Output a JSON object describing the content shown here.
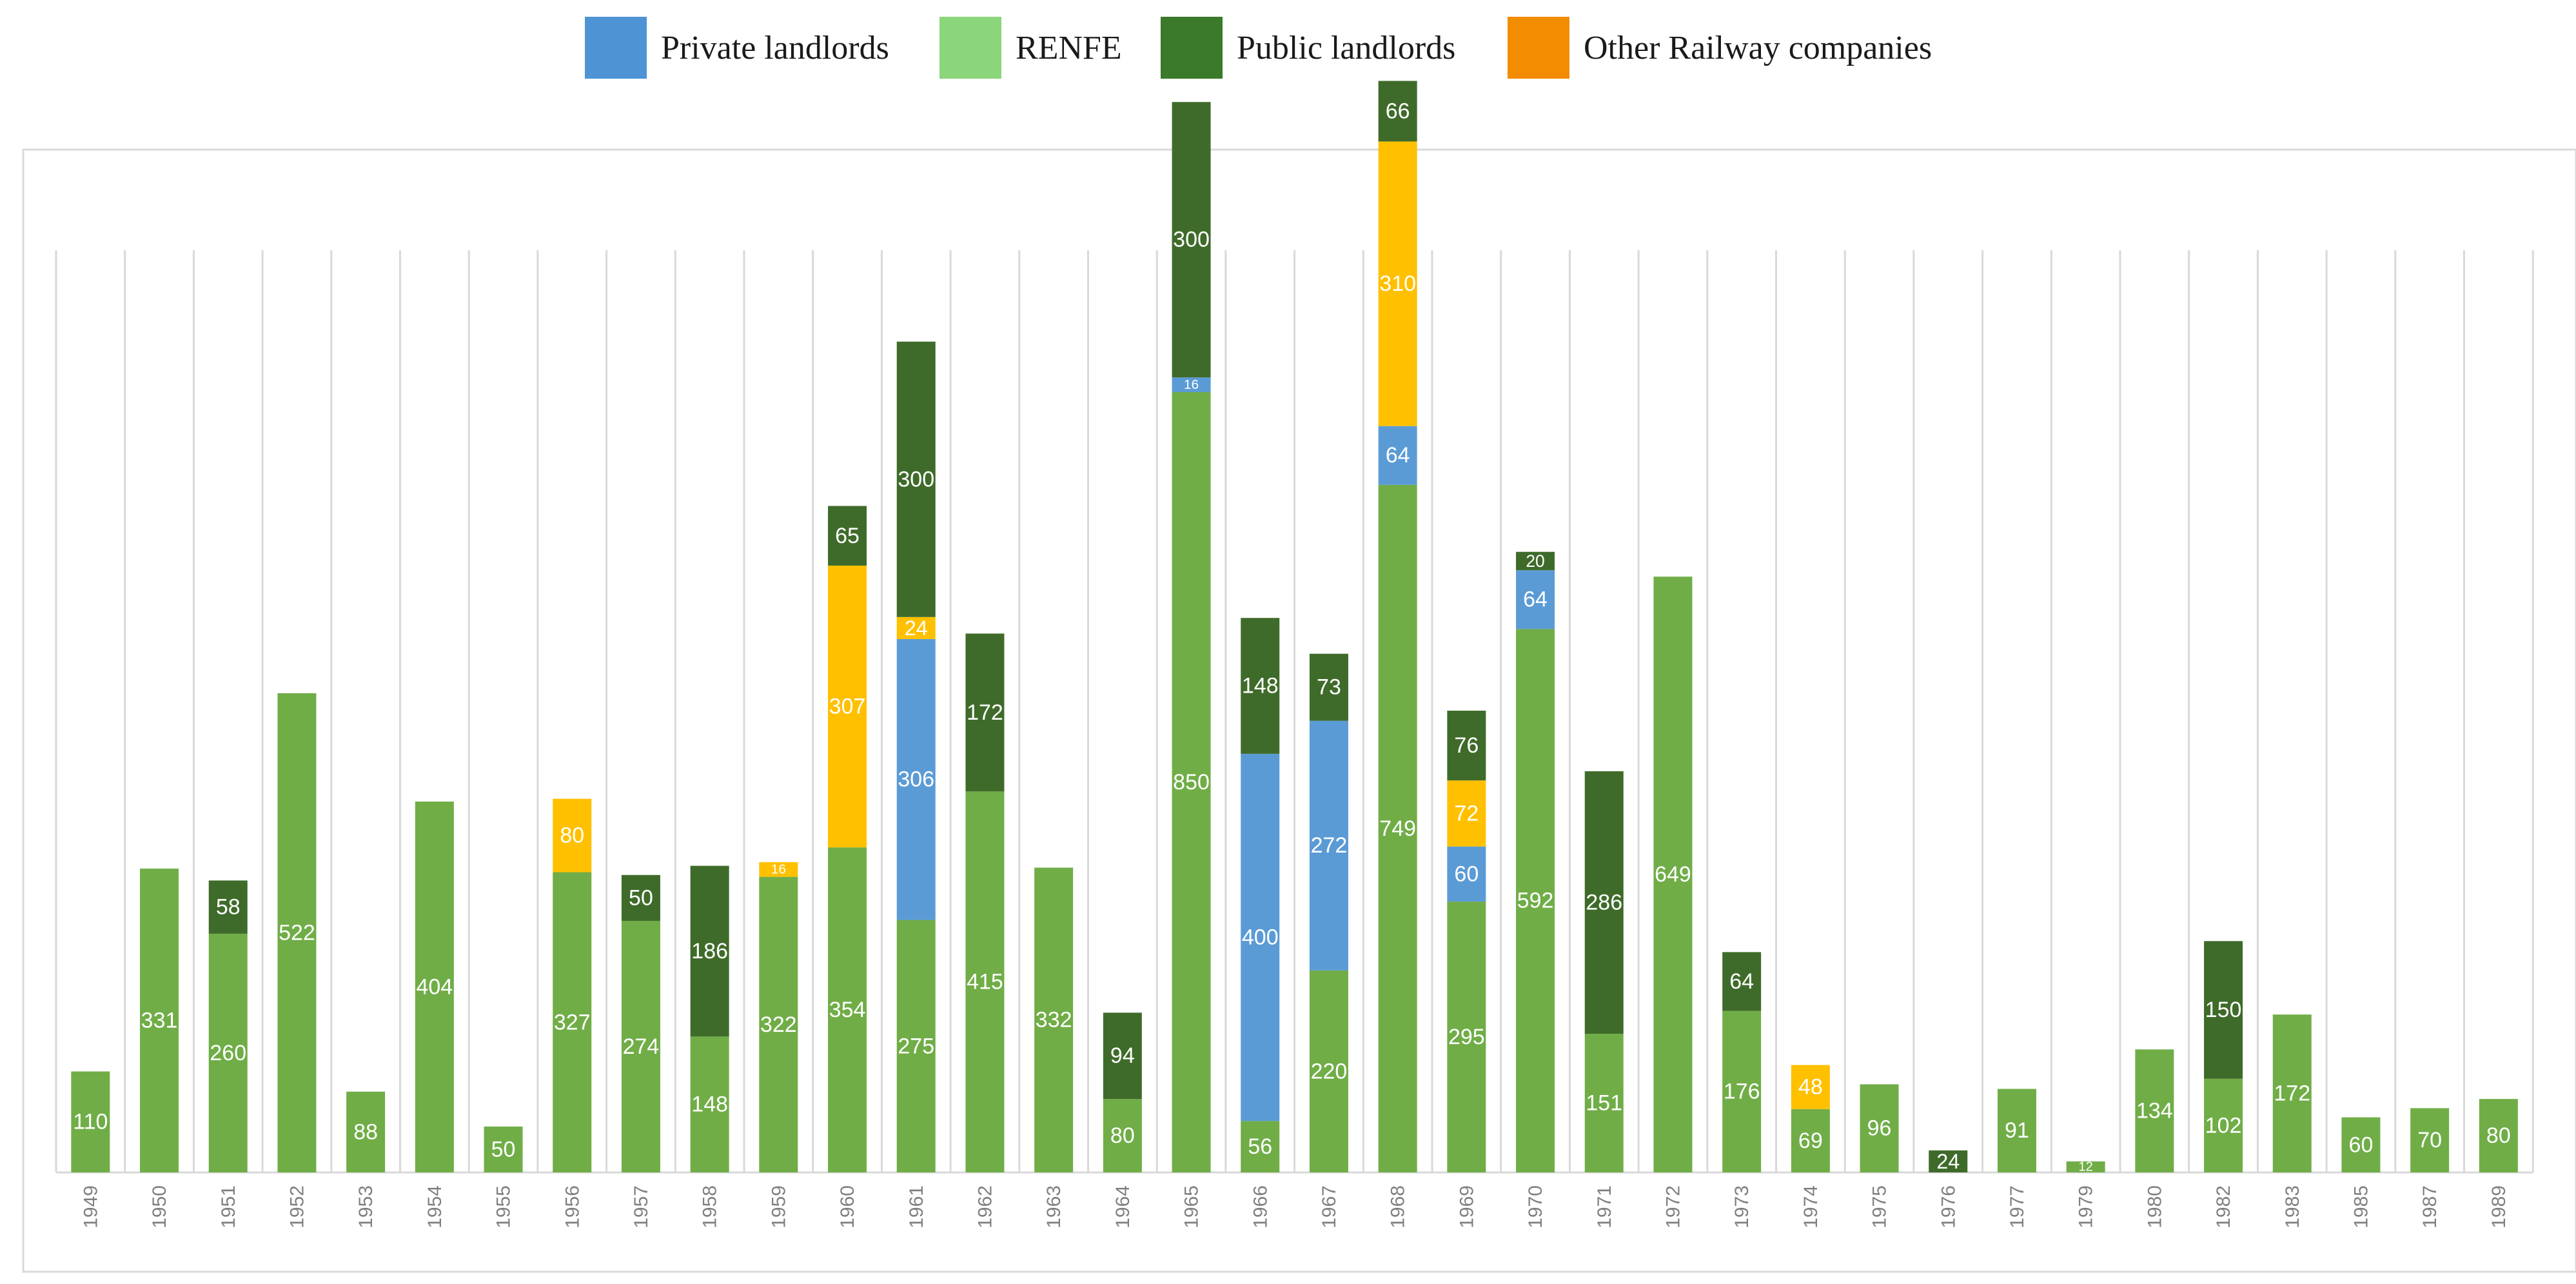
{
  "colors": {
    "renfe": "#70ad47",
    "private": "#5b9bd5",
    "other_railway": "#ffc000",
    "public": "#3f6b2a",
    "legend_private": "#4e94d4",
    "legend_renfe": "#8bd67a",
    "legend_public": "#3a7a2a",
    "legend_other": "#f28c00",
    "grid": "#d9d9d9",
    "frame": "#d9d9d9",
    "axis_text": "#7f7f7f",
    "label_text": "#ffffff"
  },
  "chart_data": {
    "type": "bar",
    "stacked": true,
    "title": "",
    "xlabel": "",
    "ylabel": "",
    "ylim": [
      0,
      1350
    ],
    "grid": "vertical",
    "legend_position": "top",
    "legend": [
      {
        "key": "private",
        "label": "Private landlords"
      },
      {
        "key": "renfe",
        "label": "RENFE"
      },
      {
        "key": "public",
        "label": "Public landlords"
      },
      {
        "key": "other_railway",
        "label": "Other Railway companies"
      }
    ],
    "categories": [
      "1949",
      "1950",
      "1951",
      "1952",
      "1953",
      "1954",
      "1955",
      "1956",
      "1957",
      "1958",
      "1959",
      "1960",
      "1961",
      "1962",
      "1963",
      "1964",
      "1965",
      "1966",
      "1967",
      "1968",
      "1969",
      "1970",
      "1971",
      "1972",
      "1973",
      "1974",
      "1975",
      "1976",
      "1977",
      "1979",
      "1980",
      "1982",
      "1983",
      "1985",
      "1987",
      "1989"
    ],
    "series": [
      {
        "key": "renfe",
        "name": "RENFE",
        "values": [
          110,
          331,
          260,
          522,
          88,
          404,
          50,
          327,
          274,
          148,
          322,
          354,
          275,
          415,
          332,
          80,
          850,
          56,
          220,
          749,
          295,
          592,
          151,
          649,
          176,
          69,
          96,
          0,
          91,
          12,
          134,
          102,
          172,
          60,
          70,
          80
        ]
      },
      {
        "key": "private",
        "name": "Private landlords",
        "values": [
          0,
          0,
          0,
          0,
          0,
          0,
          0,
          0,
          0,
          0,
          0,
          0,
          306,
          0,
          0,
          0,
          16,
          400,
          272,
          64,
          60,
          64,
          0,
          0,
          0,
          0,
          0,
          0,
          0,
          0,
          0,
          0,
          0,
          0,
          0,
          0
        ]
      },
      {
        "key": "other_railway",
        "name": "Other Railway companies",
        "values": [
          0,
          0,
          0,
          0,
          0,
          0,
          0,
          80,
          0,
          0,
          16,
          307,
          24,
          0,
          0,
          0,
          0,
          0,
          0,
          310,
          72,
          0,
          0,
          0,
          0,
          48,
          0,
          0,
          0,
          0,
          0,
          0,
          0,
          0,
          0,
          0
        ]
      },
      {
        "key": "public",
        "name": "Public landlords",
        "values": [
          0,
          0,
          58,
          0,
          0,
          0,
          0,
          0,
          50,
          186,
          0,
          65,
          300,
          172,
          0,
          94,
          300,
          148,
          73,
          66,
          76,
          20,
          286,
          0,
          64,
          0,
          0,
          24,
          0,
          0,
          0,
          150,
          0,
          0,
          0,
          0
        ]
      }
    ]
  }
}
